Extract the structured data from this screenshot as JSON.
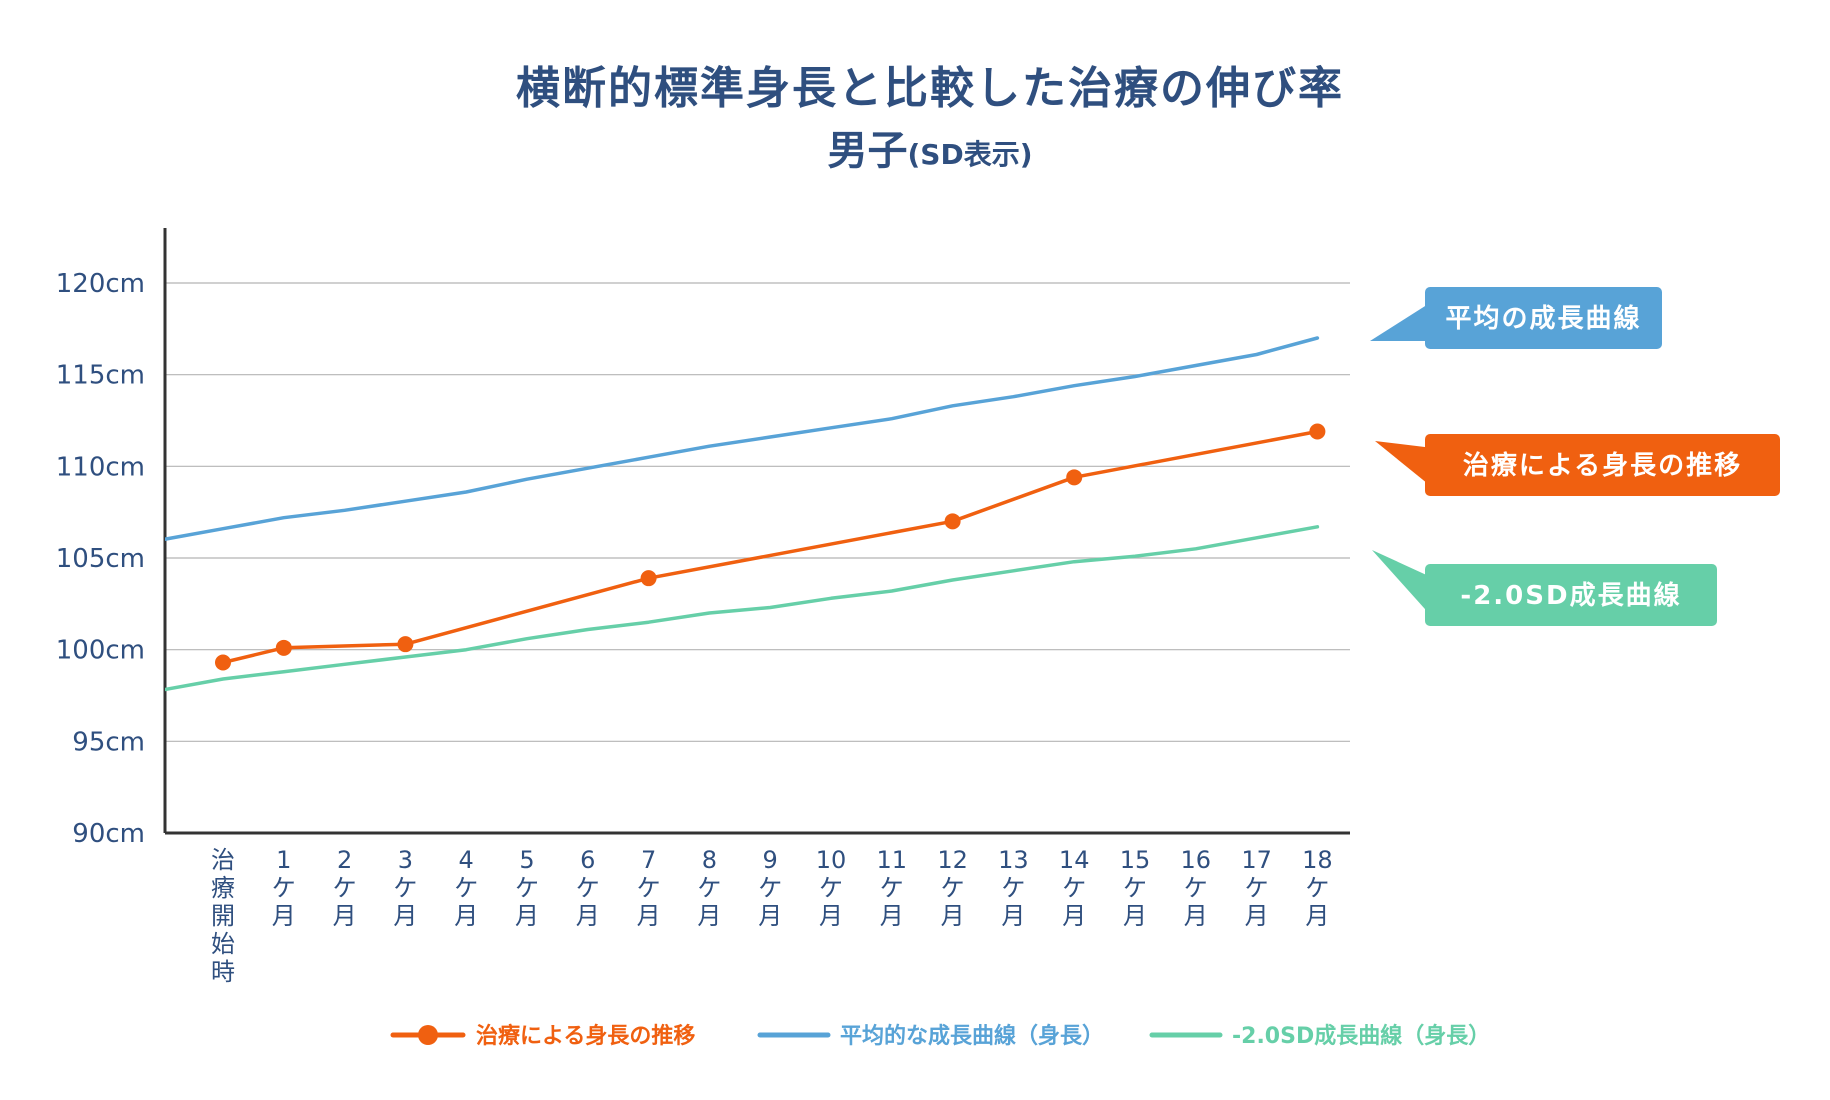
{
  "chart_data": {
    "type": "line",
    "title": "横断的標準身長と比較した治療の伸び率",
    "subtitle_main": "男子",
    "subtitle_note": "(SD表示)",
    "ylim": [
      90,
      123
    ],
    "y_ticks": [
      90,
      95,
      100,
      105,
      110,
      115,
      120
    ],
    "y_tick_labels": [
      "90cm",
      "95cm",
      "100cm",
      "105cm",
      "110cm",
      "115cm",
      "120cm"
    ],
    "x_categories": [
      [
        "治",
        "療",
        "開",
        "始",
        "時"
      ],
      [
        "1",
        "ケ",
        "月"
      ],
      [
        "2",
        "ケ",
        "月"
      ],
      [
        "3",
        "ケ",
        "月"
      ],
      [
        "4",
        "ケ",
        "月"
      ],
      [
        "5",
        "ケ",
        "月"
      ],
      [
        "6",
        "ケ",
        "月"
      ],
      [
        "7",
        "ケ",
        "月"
      ],
      [
        "8",
        "ケ",
        "月"
      ],
      [
        "9",
        "ケ",
        "月"
      ],
      [
        "10",
        "ケ",
        "月"
      ],
      [
        "11",
        "ケ",
        "月"
      ],
      [
        "12",
        "ケ",
        "月"
      ],
      [
        "13",
        "ケ",
        "月"
      ],
      [
        "14",
        "ケ",
        "月"
      ],
      [
        "15",
        "ケ",
        "月"
      ],
      [
        "16",
        "ケ",
        "月"
      ],
      [
        "17",
        "ケ",
        "月"
      ],
      [
        "18",
        "ケ",
        "月"
      ]
    ],
    "grid": true,
    "legend_position": "bottom",
    "series": [
      {
        "name": "治療による身長の推移",
        "color": "#f06010",
        "marker": "circle",
        "points": [
          [
            0,
            99.3
          ],
          [
            1,
            100.1
          ],
          [
            3,
            100.3
          ],
          [
            7,
            103.9
          ],
          [
            12,
            107.0
          ],
          [
            14,
            109.4
          ],
          [
            18,
            111.9
          ]
        ]
      },
      {
        "name": "平均的な成長曲線（身長）",
        "color": "#58a3d7",
        "marker": "none",
        "points": [
          [
            -1,
            106.0
          ],
          [
            0,
            106.6
          ],
          [
            1,
            107.2
          ],
          [
            2,
            107.6
          ],
          [
            3,
            108.1
          ],
          [
            4,
            108.6
          ],
          [
            5,
            109.3
          ],
          [
            6,
            109.9
          ],
          [
            7,
            110.5
          ],
          [
            8,
            111.1
          ],
          [
            9,
            111.6
          ],
          [
            10,
            112.1
          ],
          [
            11,
            112.6
          ],
          [
            12,
            113.3
          ],
          [
            13,
            113.8
          ],
          [
            14,
            114.4
          ],
          [
            15,
            114.9
          ],
          [
            16,
            115.5
          ],
          [
            17,
            116.1
          ],
          [
            18,
            117.0
          ]
        ]
      },
      {
        "name": "-2.0SD成長曲線（身長）",
        "color": "#66cfa8",
        "marker": "none",
        "points": [
          [
            -1,
            97.8
          ],
          [
            0,
            98.4
          ],
          [
            1,
            98.8
          ],
          [
            2,
            99.2
          ],
          [
            3,
            99.6
          ],
          [
            4,
            100.0
          ],
          [
            5,
            100.6
          ],
          [
            6,
            101.1
          ],
          [
            7,
            101.5
          ],
          [
            8,
            102.0
          ],
          [
            9,
            102.3
          ],
          [
            10,
            102.8
          ],
          [
            11,
            103.2
          ],
          [
            12,
            103.8
          ],
          [
            13,
            104.3
          ],
          [
            14,
            104.8
          ],
          [
            15,
            105.1
          ],
          [
            16,
            105.5
          ],
          [
            17,
            106.1
          ],
          [
            18,
            106.7
          ]
        ]
      }
    ],
    "callouts": [
      {
        "text": "平均の成長曲線",
        "color": "#58a3d7",
        "series": 1
      },
      {
        "text": "治療による身長の推移",
        "color": "#f06010",
        "series": 0
      },
      {
        "text": "-2.0SD成長曲線",
        "color": "#66cfa8",
        "series": 2
      }
    ]
  }
}
